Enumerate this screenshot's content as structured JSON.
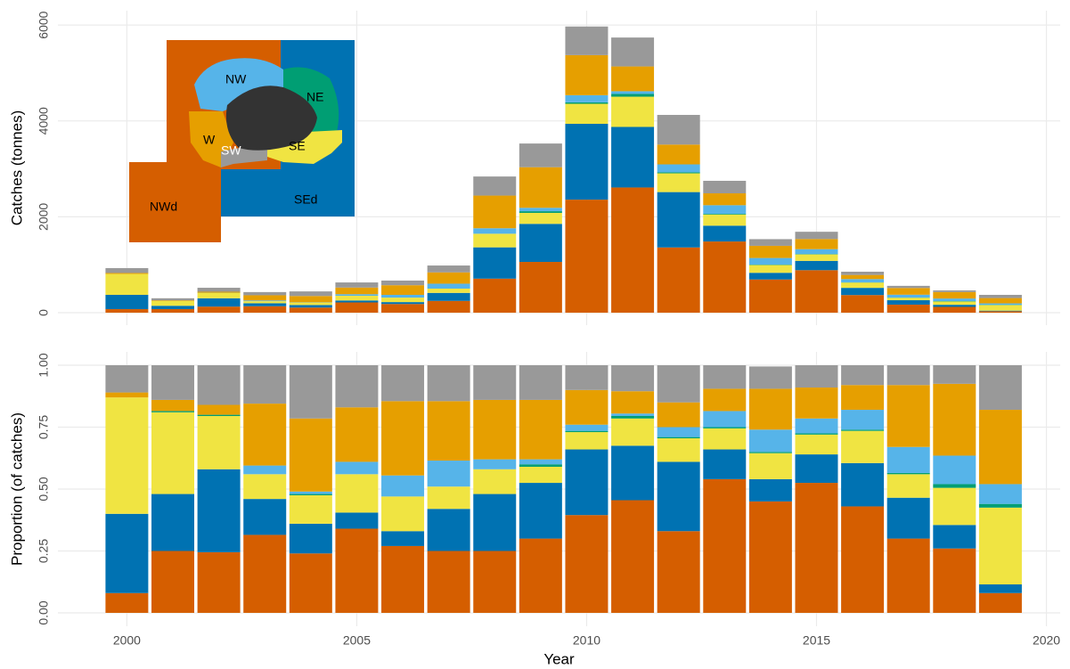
{
  "chart_data": [
    {
      "type": "bar",
      "ylabel": "Catches (tonnes)",
      "x": [
        2000,
        2001,
        2002,
        2003,
        2004,
        2005,
        2006,
        2007,
        2008,
        2009,
        2010,
        2011,
        2012,
        2013,
        2014,
        2015,
        2016,
        2017,
        2018,
        2019
      ],
      "xlim": [
        1998.5,
        2020.3
      ],
      "xticks": [
        2000,
        2005,
        2010,
        2015,
        2020
      ],
      "ylim": [
        -260,
        6300
      ],
      "yticks": [
        0,
        2000,
        4000,
        6000
      ],
      "grid": true,
      "stacked": true,
      "series": [
        {
          "name": "NWd",
          "color": "#D55E00",
          "values": [
            74,
            75,
            127,
            135,
            107,
            214,
            181,
            246,
            710,
            1059,
            2358,
            2612,
            1361,
            1485,
            693,
            887,
            368,
            168,
            121,
            30
          ]
        },
        {
          "name": "SEd",
          "color": "#0072B2",
          "values": [
            298,
            69,
            174,
            62,
            53,
            41,
            40,
            167,
            653,
            794,
            1582,
            1263,
            1155,
            330,
            139,
            194,
            150,
            92,
            44,
            13
          ]
        },
        {
          "name": "SE",
          "color": "#F0E442",
          "values": [
            437,
            99,
            112,
            43,
            51,
            98,
            94,
            89,
            284,
            229,
            418,
            631,
            392,
            234,
            162,
            135,
            111,
            53,
            70,
            115
          ]
        },
        {
          "name": "NE",
          "color": "#009E73",
          "values": [
            0,
            2,
            3,
            0,
            2,
            0,
            0,
            0,
            0,
            35,
            30,
            57,
            21,
            14,
            8,
            8,
            4,
            3,
            7,
            6
          ]
        },
        {
          "name": "NW",
          "color": "#56B4E9",
          "values": [
            0,
            0,
            0,
            15,
            4,
            32,
            57,
            103,
            114,
            71,
            149,
            57,
            165,
            179,
            139,
            101,
            68,
            59,
            53,
            30
          ]
        },
        {
          "name": "W",
          "color": "#E69F00",
          "values": [
            19,
            14,
            21,
            108,
            131,
            139,
            201,
            236,
            682,
            847,
            836,
            517,
            413,
            248,
            254,
            211,
            86,
            140,
            135,
            111
          ]
        },
        {
          "name": "SW",
          "color": "#999999",
          "values": [
            102,
            42,
            83,
            67,
            96,
            107,
            97,
            143,
            398,
            494,
            597,
            603,
            619,
            261,
            139,
            152,
            68,
            45,
            35,
            67
          ]
        }
      ]
    },
    {
      "type": "bar",
      "ylabel": "Proportion (of catches)",
      "xlabel": "Year",
      "x": [
        2000,
        2001,
        2002,
        2003,
        2004,
        2005,
        2006,
        2007,
        2008,
        2009,
        2010,
        2011,
        2012,
        2013,
        2014,
        2015,
        2016,
        2017,
        2018,
        2019
      ],
      "xlim": [
        1998.5,
        2020.3
      ],
      "xticks": [
        2000,
        2005,
        2010,
        2015,
        2020
      ],
      "ylim": [
        -0.054,
        1.054
      ],
      "yticks": [
        {
          "value": 0,
          "label": "0.00"
        },
        {
          "value": 0.25,
          "label": "0.25"
        },
        {
          "value": 0.5,
          "label": "0.50"
        },
        {
          "value": 0.75,
          "label": "0.75"
        },
        {
          "value": 1,
          "label": "1.00"
        }
      ],
      "grid": true,
      "stacked": true,
      "series": [
        {
          "color": "#D55E00",
          "values": [
            0.08,
            0.25,
            0.245,
            0.315,
            0.24,
            0.34,
            0.27,
            0.25,
            0.25,
            0.3,
            0.395,
            0.455,
            0.33,
            0.54,
            0.45,
            0.525,
            0.43,
            0.3,
            0.26,
            0.08
          ]
        },
        {
          "color": "#0072B2",
          "values": [
            0.32,
            0.23,
            0.335,
            0.145,
            0.12,
            0.065,
            0.06,
            0.17,
            0.23,
            0.225,
            0.265,
            0.22,
            0.28,
            0.12,
            0.09,
            0.115,
            0.175,
            0.165,
            0.095,
            0.035
          ]
        },
        {
          "color": "#F0E442",
          "values": [
            0.47,
            0.33,
            0.215,
            0.1,
            0.115,
            0.155,
            0.14,
            0.09,
            0.1,
            0.065,
            0.07,
            0.11,
            0.095,
            0.085,
            0.105,
            0.08,
            0.13,
            0.095,
            0.15,
            0.31
          ]
        },
        {
          "color": "#009E73",
          "values": [
            0,
            0.005,
            0.005,
            0,
            0.005,
            0,
            0,
            0,
            0,
            0.01,
            0.005,
            0.01,
            0.005,
            0.005,
            0.005,
            0.005,
            0.005,
            0.005,
            0.015,
            0.015
          ]
        },
        {
          "color": "#56B4E9",
          "values": [
            0,
            0,
            0,
            0.035,
            0.01,
            0.05,
            0.085,
            0.105,
            0.04,
            0.02,
            0.025,
            0.01,
            0.04,
            0.065,
            0.09,
            0.06,
            0.08,
            0.105,
            0.115,
            0.08
          ]
        },
        {
          "color": "#E69F00",
          "values": [
            0.02,
            0.045,
            0.04,
            0.25,
            0.295,
            0.22,
            0.3,
            0.24,
            0.24,
            0.24,
            0.14,
            0.09,
            0.1,
            0.09,
            0.165,
            0.125,
            0.1,
            0.25,
            0.29,
            0.3
          ]
        },
        {
          "color": "#999999",
          "values": [
            0.11,
            0.14,
            0.16,
            0.155,
            0.215,
            0.17,
            0.145,
            0.145,
            0.14,
            0.14,
            0.1,
            0.105,
            0.15,
            0.095,
            0.09,
            0.09,
            0.08,
            0.08,
            0.075,
            0.18
          ]
        }
      ]
    }
  ]
}
